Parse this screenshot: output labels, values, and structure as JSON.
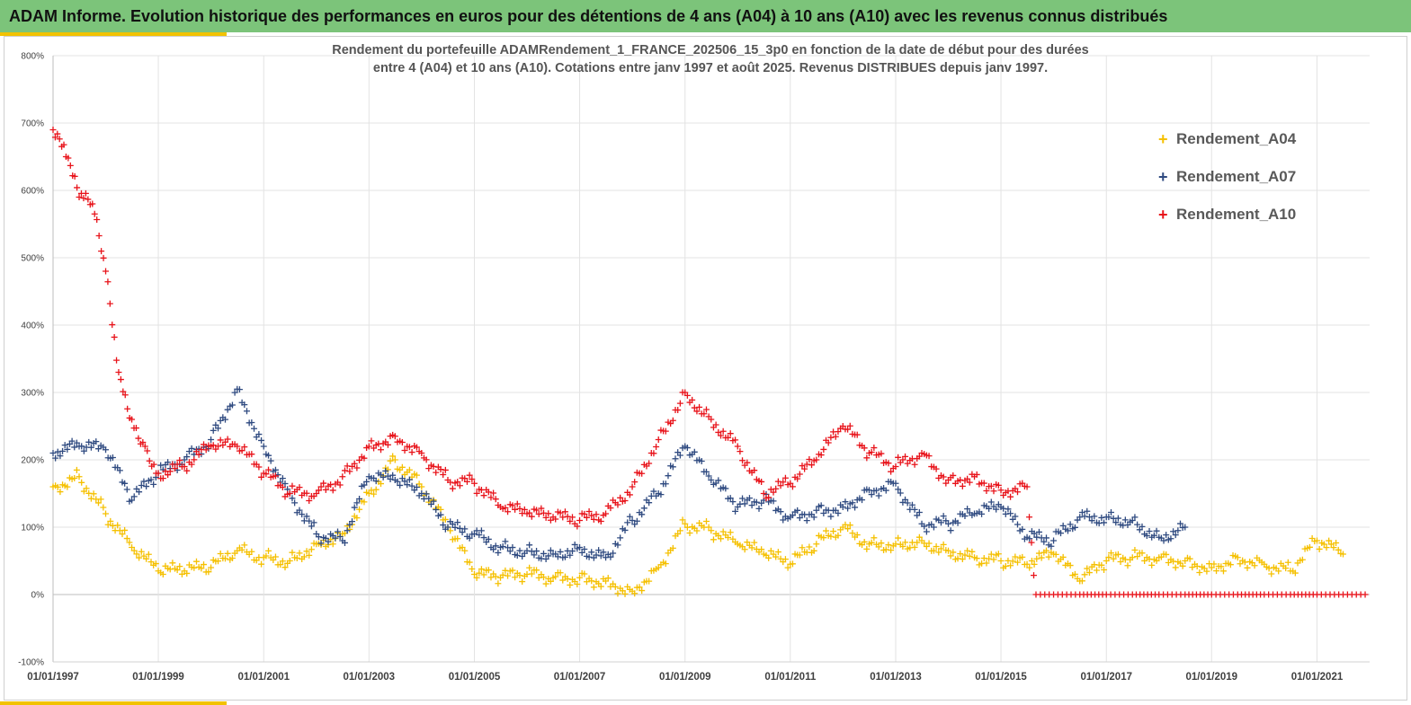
{
  "banner": {
    "title": "ADAM Informe. Evolution historique des performances en euros pour des détentions de 4 ans (A04) à 10 ans (A10) avec les revenus connus distribués"
  },
  "colors": {
    "banner_bg": "#7cc47a",
    "accent": "#f2c200"
  },
  "chart_data": {
    "type": "scatter",
    "marker": "plus",
    "title": [
      "Rendement du portefeuille ADAMRendement_1_FRANCE_202506_15_3p0  en fonction de la date de début pour des durées",
      "entre 4 (A04) et 10 ans (A10). Cotations entre janv 1997 et août 2025. Revenus DISTRIBUES depuis janv 1997."
    ],
    "xlabel": "",
    "ylabel": "",
    "x_range": [
      "1997-01-01",
      "2022-01-01"
    ],
    "ylim": [
      -100,
      800
    ],
    "y_ticks": [
      "-100%",
      "0%",
      "100%",
      "200%",
      "300%",
      "400%",
      "500%",
      "600%",
      "700%",
      "800%"
    ],
    "x_ticks": [
      "01/01/1997",
      "01/01/1999",
      "01/01/2001",
      "01/01/2003",
      "01/01/2005",
      "01/01/2007",
      "01/01/2009",
      "01/01/2011",
      "01/01/2013",
      "01/01/2015",
      "01/01/2017",
      "01/01/2019",
      "01/01/2021"
    ],
    "grid": true,
    "legend": "right",
    "series": [
      {
        "name": "Rendement_A04",
        "color": "#f5c000",
        "x": [
          "1997-01-01",
          "1997-07-01",
          "1998-01-01",
          "1998-07-01",
          "1999-01-01",
          "1999-07-01",
          "2000-01-01",
          "2000-07-01",
          "2001-01-01",
          "2001-07-01",
          "2002-01-01",
          "2002-07-01",
          "2003-01-01",
          "2003-07-01",
          "2004-01-01",
          "2004-07-01",
          "2005-01-01",
          "2005-07-01",
          "2006-01-01",
          "2006-07-01",
          "2007-01-01",
          "2007-07-01",
          "2008-01-01",
          "2008-07-01",
          "2009-01-01",
          "2009-07-01",
          "2010-01-01",
          "2010-07-01",
          "2011-01-01",
          "2011-07-01",
          "2012-01-01",
          "2012-07-01",
          "2013-01-01",
          "2013-07-01",
          "2014-01-01",
          "2014-07-01",
          "2015-01-01",
          "2015-07-01",
          "2016-01-01",
          "2016-07-01",
          "2017-01-01",
          "2017-07-01",
          "2018-01-01",
          "2018-07-01",
          "2019-01-01",
          "2019-07-01",
          "2020-01-01",
          "2020-07-01",
          "2021-01-01",
          "2021-07-01"
        ],
        "y": [
          160,
          175,
          120,
          70,
          35,
          35,
          40,
          65,
          55,
          50,
          75,
          90,
          150,
          200,
          160,
          100,
          30,
          25,
          30,
          25,
          25,
          20,
          5,
          40,
          105,
          95,
          75,
          60,
          45,
          75,
          100,
          75,
          75,
          80,
          65,
          55,
          50,
          45,
          60,
          20,
          50,
          55,
          55,
          50,
          40,
          55,
          45,
          35,
          80,
          60
        ]
      },
      {
        "name": "Rendement_A07",
        "color": "#2f4a80",
        "x": [
          "1997-01-01",
          "1997-07-01",
          "1998-01-01",
          "1998-07-01",
          "1999-01-01",
          "1999-07-01",
          "2000-01-01",
          "2000-07-01",
          "2001-01-01",
          "2001-07-01",
          "2002-01-01",
          "2002-07-01",
          "2003-01-01",
          "2003-07-01",
          "2004-01-01",
          "2004-07-01",
          "2005-01-01",
          "2005-07-01",
          "2006-01-01",
          "2006-07-01",
          "2007-01-01",
          "2007-07-01",
          "2008-01-01",
          "2008-07-01",
          "2009-01-01",
          "2009-07-01",
          "2010-01-01",
          "2010-07-01",
          "2011-01-01",
          "2011-07-01",
          "2012-01-01",
          "2012-07-01",
          "2013-01-01",
          "2013-07-01",
          "2014-01-01",
          "2014-07-01",
          "2015-01-01",
          "2015-07-01",
          "2016-01-01",
          "2016-07-01",
          "2017-01-01",
          "2017-07-01",
          "2018-01-01",
          "2018-07-01"
        ],
        "y": [
          210,
          220,
          215,
          140,
          180,
          200,
          230,
          305,
          220,
          150,
          90,
          80,
          175,
          170,
          150,
          100,
          90,
          70,
          65,
          60,
          70,
          55,
          110,
          150,
          220,
          170,
          130,
          140,
          115,
          125,
          130,
          155,
          165,
          105,
          105,
          120,
          130,
          85,
          80,
          115,
          115,
          110,
          85,
          100
        ]
      },
      {
        "name": "Rendement_A10",
        "color": "#e8131a",
        "x": [
          "1997-01-01",
          "1997-04-01",
          "1997-07-01",
          "1997-10-01",
          "1998-01-01",
          "1998-04-01",
          "1998-07-01",
          "1998-10-01",
          "1999-01-01",
          "1999-07-01",
          "2000-01-01",
          "2000-07-01",
          "2001-01-01",
          "2001-07-01",
          "2002-01-01",
          "2002-07-01",
          "2003-01-01",
          "2003-07-01",
          "2004-01-01",
          "2004-07-01",
          "2005-01-01",
          "2005-07-01",
          "2006-01-01",
          "2006-07-01",
          "2007-01-01",
          "2007-07-01",
          "2008-01-01",
          "2008-07-01",
          "2009-01-01",
          "2009-07-01",
          "2010-01-01",
          "2010-07-01",
          "2011-01-01",
          "2011-07-01",
          "2012-01-01",
          "2012-07-01",
          "2013-01-01",
          "2013-07-01",
          "2014-01-01",
          "2014-07-01",
          "2015-01-01",
          "2015-07-01",
          "2015-09-01",
          "2016-01-01",
          "2016-07-01",
          "2017-01-01",
          "2017-07-01",
          "2018-01-01",
          "2018-07-01",
          "2019-01-01",
          "2019-07-01",
          "2020-01-01",
          "2020-07-01",
          "2021-01-01",
          "2021-07-01",
          "2021-12-01"
        ],
        "y": [
          690,
          650,
          590,
          580,
          480,
          330,
          260,
          220,
          180,
          190,
          220,
          220,
          180,
          150,
          150,
          175,
          220,
          235,
          210,
          170,
          165,
          130,
          120,
          115,
          110,
          120,
          160,
          230,
          300,
          260,
          220,
          150,
          165,
          200,
          250,
          210,
          190,
          210,
          170,
          175,
          155,
          160,
          0,
          0,
          0,
          0,
          0,
          0,
          0,
          0,
          0,
          0,
          0,
          0,
          0,
          0
        ]
      }
    ]
  }
}
